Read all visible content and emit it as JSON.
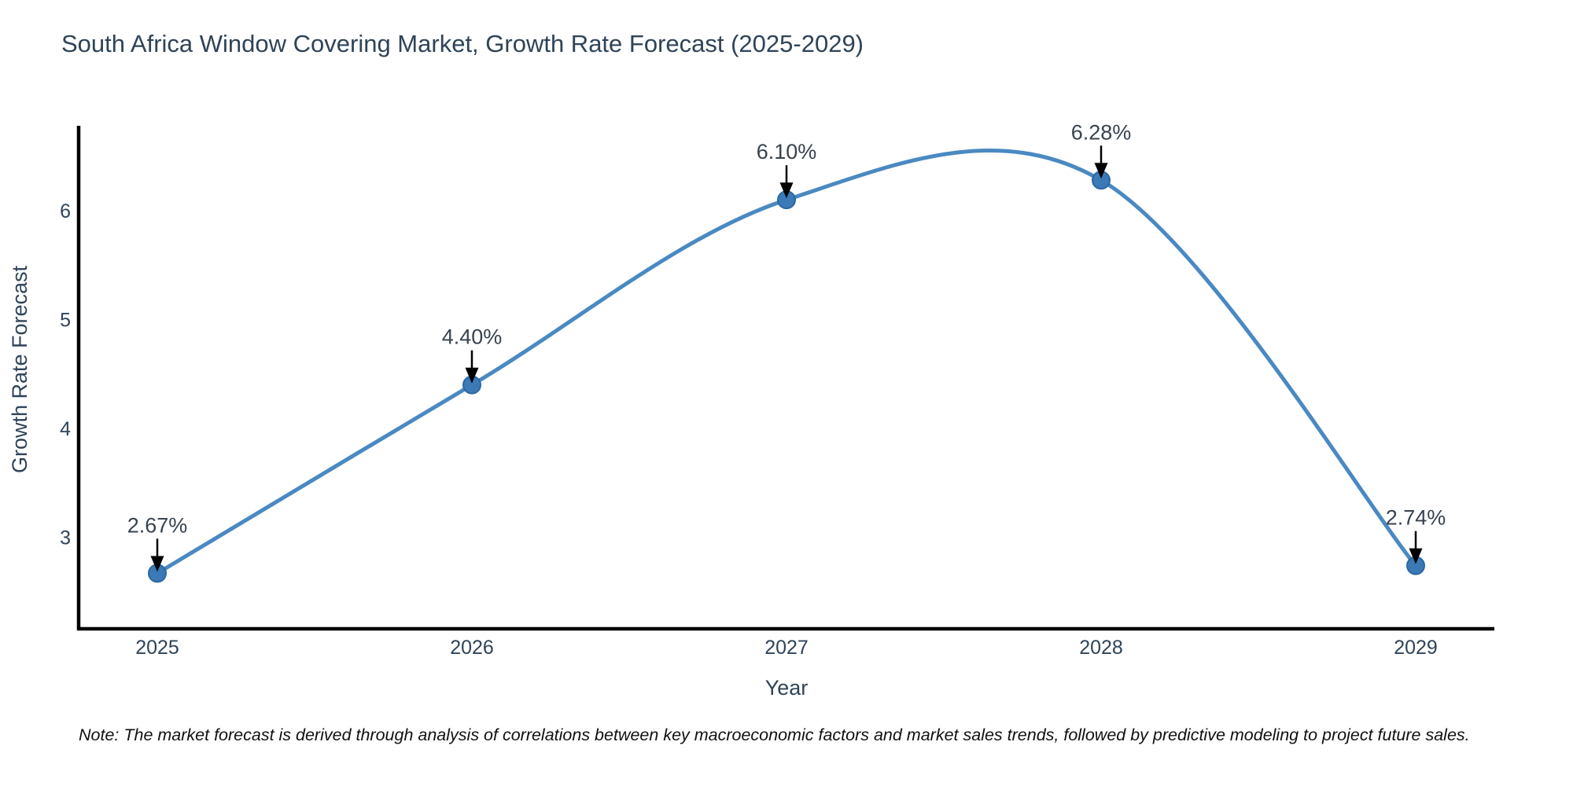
{
  "title": "South Africa Window Covering Market, Growth Rate Forecast (2025-2029)",
  "footnote": "Note: The market forecast is derived through analysis of correlations between key macroeconomic factors and market sales trends, followed by predictive modeling to project future sales.",
  "chart_data": {
    "type": "line",
    "title": "South Africa Window Covering Market, Growth Rate Forecast (2025-2029)",
    "xlabel": "Year",
    "ylabel": "Growth Rate Forecast",
    "x": [
      2025,
      2026,
      2027,
      2028,
      2029
    ],
    "series": [
      {
        "name": "Growth Rate Forecast",
        "values": [
          2.67,
          4.4,
          6.1,
          6.28,
          2.74
        ]
      }
    ],
    "point_labels": [
      "2.67%",
      "4.40%",
      "6.10%",
      "6.28%",
      "2.74%"
    ],
    "yticks": [
      3,
      4,
      5,
      6
    ],
    "xlim": [
      2024.75,
      2029.25
    ],
    "ylim": [
      2.16,
      6.78
    ],
    "curve": "spline",
    "markers": true,
    "grid": false,
    "legend": "none",
    "annotations": "value labels with downward arrows above each point",
    "colors": {
      "line": "#4a89c2",
      "marker_fill": "#3b7ab7",
      "marker_edge": "#2c689f",
      "axis": "#000000",
      "text": "#2f4358",
      "annotation_text": "#38424e",
      "background": "#ffffff"
    }
  }
}
